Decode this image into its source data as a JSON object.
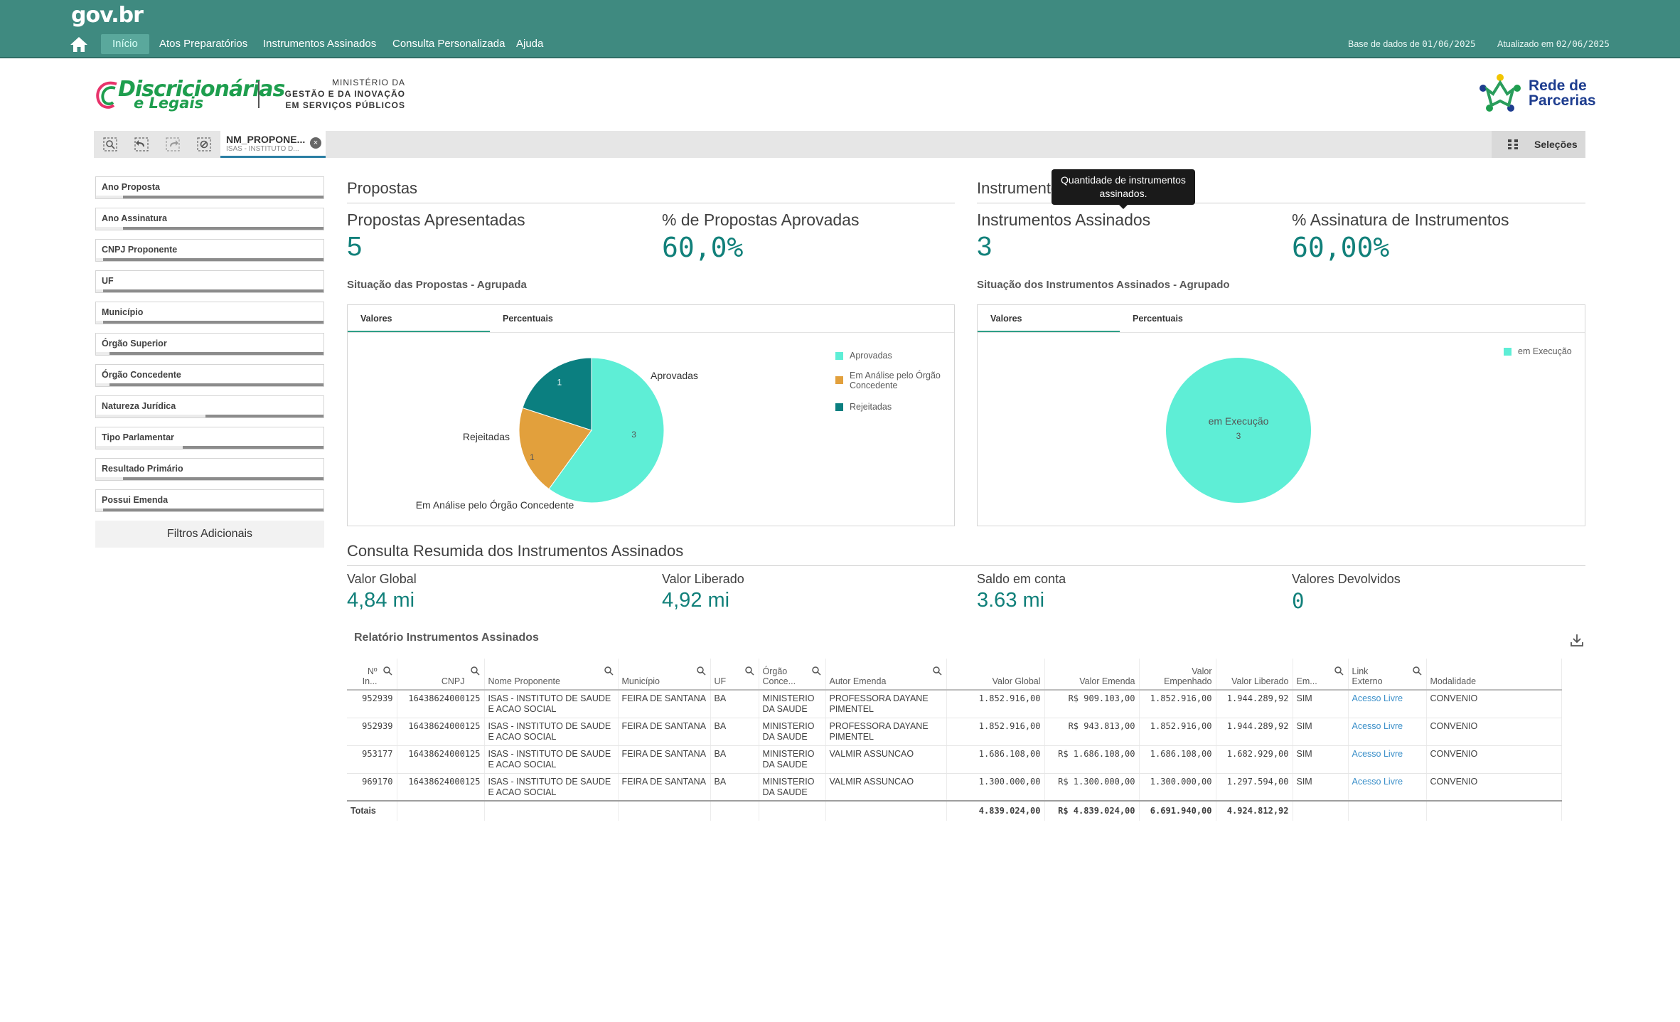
{
  "topbar": {
    "logo": "gov.br",
    "nav": [
      "Início",
      "Atos Preparatórios",
      "Instrumentos Assinados",
      "Consulta Personalizada",
      "Ajuda"
    ],
    "base_label": "Base de dados de",
    "base_date": "01/06/2025",
    "updated_label": "Atualizado em",
    "updated_date": "02/06/2025"
  },
  "header": {
    "logo_line1": "Discricionárias",
    "logo_line2": "e Legais",
    "ministerio_1": "MINISTÉRIO DA",
    "ministerio_2": "GESTÃO E DA INOVAÇÃO",
    "ministerio_3": "EM SERVIÇOS PÚBLICOS",
    "rede_1": "Rede de",
    "rede_2": "Parcerias"
  },
  "toolbar": {
    "chip_title": "NM_PROPONE...",
    "chip_value": "ISAS - INSTITUTO D...",
    "selecoes": "Seleções"
  },
  "filters": [
    {
      "label": "Ano Proposta",
      "fill": 0.12
    },
    {
      "label": "Ano Assinatura",
      "fill": 0.12
    },
    {
      "label": "CNPJ Proponente",
      "fill": 0.03
    },
    {
      "label": "UF",
      "fill": 0.03
    },
    {
      "label": "Município",
      "fill": 0.03
    },
    {
      "label": "Órgão Superior",
      "fill": 0.06
    },
    {
      "label": "Órgão Concedente",
      "fill": 0.06
    },
    {
      "label": "Natureza Jurídica",
      "fill": 0.48
    },
    {
      "label": "Tipo Parlamentar",
      "fill": 0.38
    },
    {
      "label": "Resultado Primário",
      "fill": 0.12
    },
    {
      "label": "Possui Emenda",
      "fill": 0.03
    }
  ],
  "filtros_adicionais": "Filtros Adicionais",
  "propostas": {
    "section_title": "Propostas",
    "kpi1_label": "Propostas Apresentadas",
    "kpi1_value": "5",
    "kpi2_label": "% de Propostas Aprovadas",
    "kpi2_value": "60,0%",
    "chart_title": "Situação das Propostas - Agrupada",
    "tab1": "Valores",
    "tab2": "Percentuais"
  },
  "instrumentos": {
    "section_title": "Instrumentos Assinados",
    "kpi1_label": "Instrumentos Assinados",
    "kpi1_value": "3",
    "kpi2_label": "% Assinatura de Instrumentos",
    "kpi2_value": "60,00%",
    "chart_title": "Situação dos Instrumentos Assinados - Agrupado",
    "tab1": "Valores",
    "tab2": "Percentuais"
  },
  "tooltip": {
    "line1": "Quantidade de instrumentos",
    "line2": "assinados."
  },
  "chart_data": [
    {
      "type": "pie",
      "categories": [
        "Aprovadas",
        "Em Análise pelo Órgão Concedente",
        "Rejeitadas"
      ],
      "values": [
        3,
        1,
        1
      ],
      "colors": [
        "#5eeed6",
        "#e2a03c",
        "#0b7f80"
      ],
      "legend_placement": "right"
    },
    {
      "type": "pie",
      "categories": [
        "em Execução"
      ],
      "values": [
        3
      ],
      "colors": [
        "#5eeed6"
      ],
      "legend_placement": "top-right"
    }
  ],
  "legend_propostas": [
    "Aprovadas",
    "Em Análise pelo Órgão Concedente",
    "Rejeitadas"
  ],
  "legend_instrumentos": [
    "em Execução"
  ],
  "pie1_labels": {
    "aprovadas": "Aprovadas",
    "rejeitadas": "Rejeitadas",
    "analise": "Em Análise pelo Órgão Concedente",
    "v_aprovadas": "3",
    "v_rejeitadas": "1",
    "v_analise": "1"
  },
  "pie2_labels": {
    "exec": "em Execução",
    "v_exec": "3"
  },
  "consulta": {
    "section_title": "Consulta Resumida dos Instrumentos Assinados",
    "k1_label": "Valor Global",
    "k1_value": "4,84 mi",
    "k2_label": "Valor Liberado",
    "k2_value": "4,92 mi",
    "k3_label": "Saldo em conta",
    "k3_value": "3.63 mi",
    "k4_label": "Valores Devolvidos",
    "k4_value": "0"
  },
  "table": {
    "title": "Relatório Instrumentos Assinados",
    "headers": [
      "Nº\nIn...",
      "CNPJ",
      "Nome Proponente",
      "Município",
      "UF",
      "Órgão\nConce...",
      "Autor Emenda",
      "Valor Global",
      "Valor Emenda",
      "Valor\nEmpenhado",
      "Valor Liberado",
      "Em...",
      "Link\nExterno",
      "Modalidade"
    ],
    "rows": [
      [
        "952939",
        "16438624000125",
        "ISAS - INSTITUTO DE SAUDE E ACAO SOCIAL",
        "FEIRA DE SANTANA",
        "BA",
        "MINISTERIO DA SAUDE",
        "PROFESSORA DAYANE PIMENTEL",
        "1.852.916,00",
        "R$ 909.103,00",
        "1.852.916,00",
        "1.944.289,92",
        "SIM",
        "Acesso Livre",
        "CONVENIO"
      ],
      [
        "952939",
        "16438624000125",
        "ISAS - INSTITUTO DE SAUDE E ACAO SOCIAL",
        "FEIRA DE SANTANA",
        "BA",
        "MINISTERIO DA SAUDE",
        "PROFESSORA DAYANE PIMENTEL",
        "1.852.916,00",
        "R$ 943.813,00",
        "1.852.916,00",
        "1.944.289,92",
        "SIM",
        "Acesso Livre",
        "CONVENIO"
      ],
      [
        "953177",
        "16438624000125",
        "ISAS - INSTITUTO DE SAUDE E ACAO SOCIAL",
        "FEIRA DE SANTANA",
        "BA",
        "MINISTERIO DA SAUDE",
        "VALMIR ASSUNCAO",
        "1.686.108,00",
        "R$ 1.686.108,00",
        "1.686.108,00",
        "1.682.929,00",
        "SIM",
        "Acesso Livre",
        "CONVENIO"
      ],
      [
        "969170",
        "16438624000125",
        "ISAS - INSTITUTO DE SAUDE E ACAO SOCIAL",
        "FEIRA DE SANTANA",
        "BA",
        "MINISTERIO DA SAUDE",
        "VALMIR ASSUNCAO",
        "1.300.000,00",
        "R$ 1.300.000,00",
        "1.300.000,00",
        "1.297.594,00",
        "SIM",
        "Acesso Livre",
        "CONVENIO"
      ]
    ],
    "totals": [
      "Totais",
      "",
      "",
      "",
      "",
      "",
      "",
      "4.839.024,00",
      "R$ 4.839.024,00",
      "6.691.940,00",
      "4.924.812,92",
      "",
      "",
      ""
    ]
  },
  "colors": {
    "topbar": "#3f8a80",
    "accent": "#11807a",
    "link": "#3a8fc9"
  }
}
